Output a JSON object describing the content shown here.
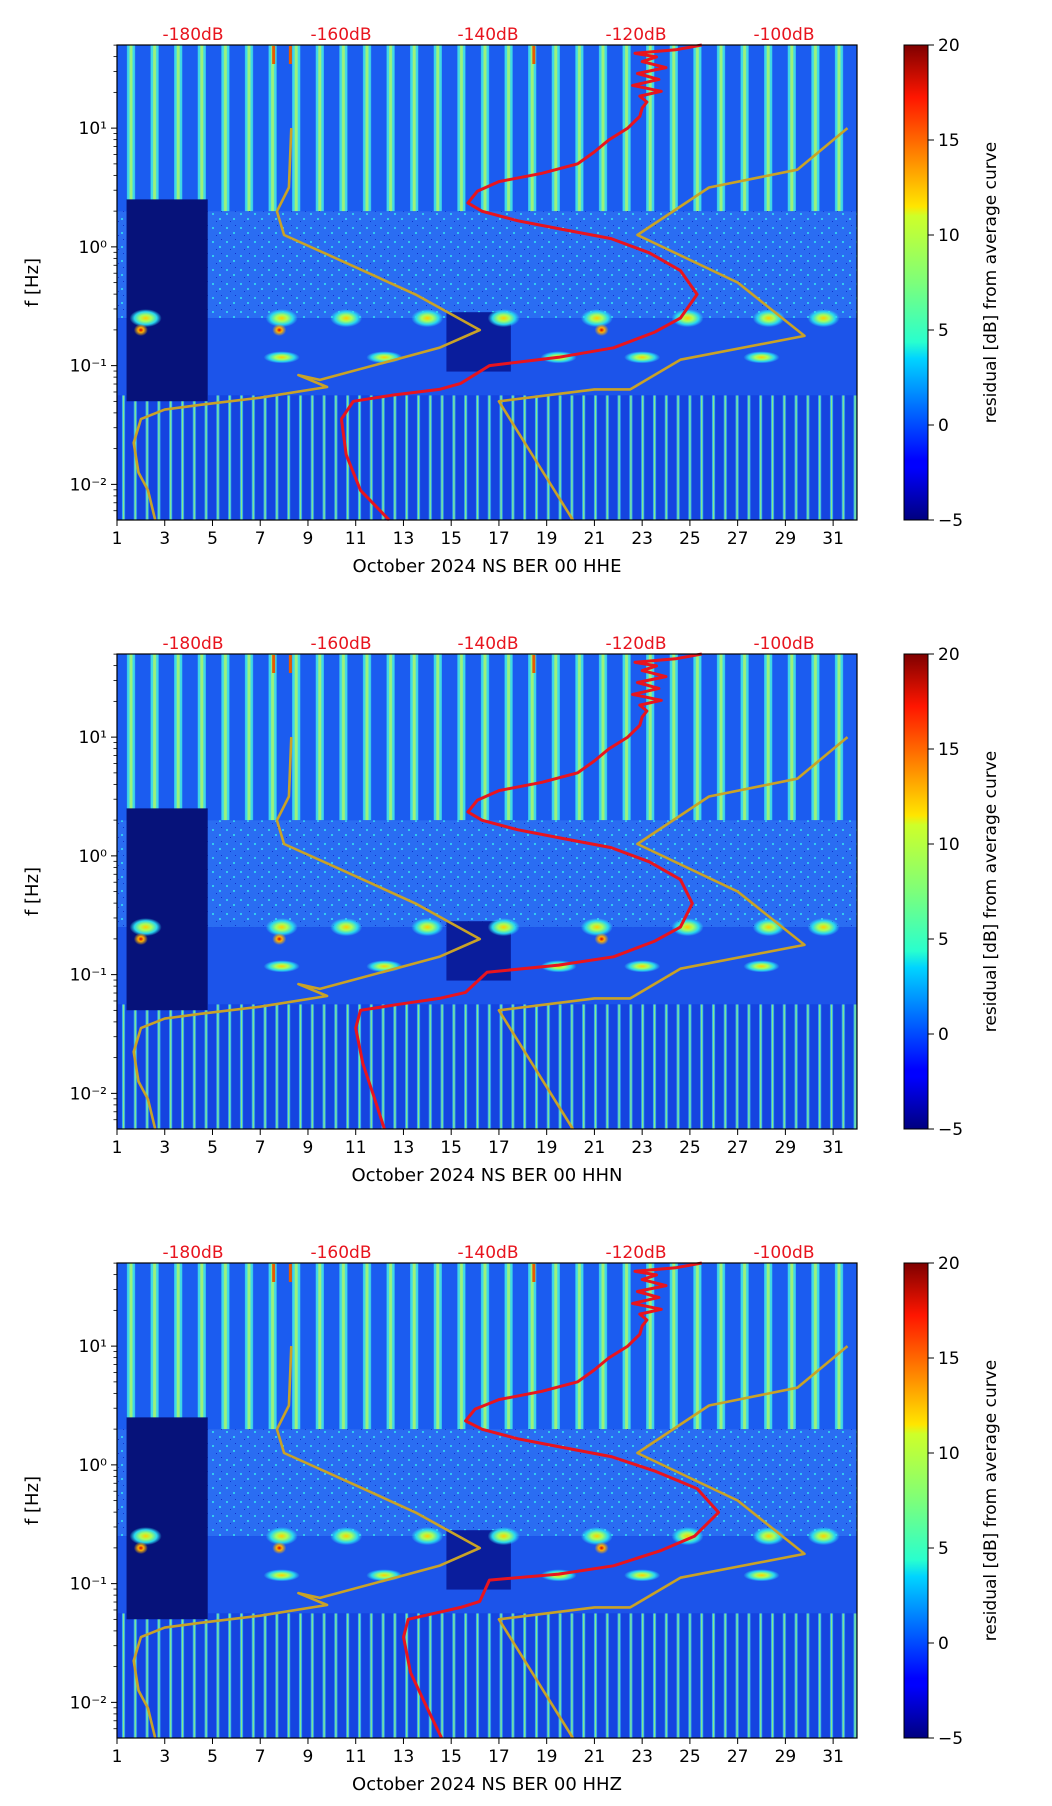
{
  "chart_data": [
    {
      "type": "heatmap",
      "xlabel": "October 2024 NS BER 00 HHE",
      "ylabel": "f [Hz]",
      "x_ticks": [
        "1",
        "3",
        "5",
        "7",
        "9",
        "11",
        "13",
        "15",
        "17",
        "19",
        "21",
        "23",
        "25",
        "27",
        "29",
        "31"
      ],
      "y_ticks": [
        "10⁻²",
        "10⁻¹",
        "10⁰",
        "10¹"
      ],
      "xlim": [
        1,
        32
      ],
      "ylim_log10": [
        -2.3,
        1.7
      ],
      "top_axis_labels": [
        "-180dB",
        "-160dB",
        "-140dB",
        "-120dB",
        "-100dB"
      ],
      "colorbar": {
        "label": "residual [dB] from average curve",
        "range": [
          -5,
          20
        ],
        "ticks": [
          "20",
          "15",
          "10",
          "5",
          "0",
          "−5"
        ]
      },
      "series": [
        {
          "name": "red (mean PSD)",
          "color": "#e8141e",
          "x": [
            12.4,
            11.2,
            10.6,
            10.4,
            10.9,
            12.5,
            14.5,
            15.4,
            16.6,
            19.5,
            21.8,
            23.5,
            24.6,
            25.3,
            24.6,
            23.3,
            21.7,
            19.6,
            17.8,
            16.3,
            15.7,
            16.1,
            17.0,
            18.8,
            20.3,
            21.0,
            21.6,
            22.4,
            22.9,
            23.0,
            23.2,
            22.9,
            23.8,
            22.6,
            23.7,
            22.8,
            24.0,
            23.0,
            23.6,
            22.7,
            24.4,
            25.5
          ],
          "y_log10": [
            -2.3,
            -2.05,
            -1.75,
            -1.45,
            -1.3,
            -1.25,
            -1.2,
            -1.15,
            -1.0,
            -0.93,
            -0.85,
            -0.72,
            -0.6,
            -0.4,
            -0.2,
            -0.05,
            0.07,
            0.15,
            0.22,
            0.3,
            0.37,
            0.47,
            0.55,
            0.62,
            0.7,
            0.8,
            0.9,
            1.0,
            1.1,
            1.17,
            1.22,
            1.27,
            1.31,
            1.36,
            1.41,
            1.46,
            1.51,
            1.56,
            1.6,
            1.63,
            1.66,
            1.7
          ]
        },
        {
          "name": "gold (noise model)",
          "color": "#c9a227",
          "x": [
            2.6,
            2.3,
            1.9,
            1.7,
            2.0,
            3.0,
            4.5,
            7.0,
            9.8,
            8.6,
            9.5,
            14.5,
            16.2,
            13.5,
            10.0,
            8.0,
            7.7,
            8.2,
            8.3
          ],
          "y_log10": [
            -2.3,
            -2.05,
            -1.9,
            -1.65,
            -1.45,
            -1.37,
            -1.33,
            -1.27,
            -1.18,
            -1.08,
            -1.12,
            -0.85,
            -0.7,
            -0.4,
            -0.08,
            0.1,
            0.3,
            0.5,
            1.0
          ]
        },
        {
          "name": "gold (noise model)",
          "color": "#c9a227",
          "x": [
            20.1,
            17.0,
            21.0,
            22.5,
            24.6,
            29.8,
            27.0,
            22.8,
            25.8,
            29.5,
            31.6
          ],
          "y_log10": [
            -2.3,
            -1.3,
            -1.2,
            -1.2,
            -0.95,
            -0.75,
            -0.3,
            0.1,
            0.5,
            0.65,
            1.0
          ]
        }
      ]
    },
    {
      "type": "heatmap",
      "xlabel": "October 2024 NS BER 00 HHN",
      "ylabel": "f [Hz]",
      "x_ticks": [
        "1",
        "3",
        "5",
        "7",
        "9",
        "11",
        "13",
        "15",
        "17",
        "19",
        "21",
        "23",
        "25",
        "27",
        "29",
        "31"
      ],
      "y_ticks": [
        "10⁻²",
        "10⁻¹",
        "10⁰",
        "10¹"
      ],
      "xlim": [
        1,
        32
      ],
      "ylim_log10": [
        -2.3,
        1.7
      ],
      "top_axis_labels": [
        "-180dB",
        "-160dB",
        "-140dB",
        "-120dB",
        "-100dB"
      ],
      "colorbar": {
        "label": "residual [dB] from average curve",
        "range": [
          -5,
          20
        ],
        "ticks": [
          "20",
          "15",
          "10",
          "5",
          "0",
          "−5"
        ]
      },
      "series": [
        {
          "name": "red (mean PSD)",
          "color": "#e8141e",
          "x": [
            12.2,
            11.8,
            11.3,
            11.0,
            11.2,
            12.8,
            14.5,
            15.6,
            16.5,
            19.5,
            21.8,
            23.5,
            24.6,
            25.1,
            24.6,
            23.3,
            21.7,
            19.6,
            17.8,
            16.3,
            15.7,
            16.1,
            17.0,
            18.8,
            20.3,
            21.0,
            21.6,
            22.4,
            22.9,
            23.0,
            23.2,
            22.9,
            23.8,
            22.6,
            23.7,
            22.8,
            24.0,
            23.0,
            23.6,
            22.7,
            24.4,
            25.5
          ],
          "y_log10": [
            -2.3,
            -2.05,
            -1.75,
            -1.45,
            -1.3,
            -1.25,
            -1.2,
            -1.15,
            -0.98,
            -0.92,
            -0.85,
            -0.72,
            -0.6,
            -0.4,
            -0.2,
            -0.05,
            0.07,
            0.15,
            0.22,
            0.3,
            0.37,
            0.47,
            0.55,
            0.62,
            0.7,
            0.8,
            0.9,
            1.0,
            1.1,
            1.17,
            1.22,
            1.27,
            1.31,
            1.36,
            1.41,
            1.46,
            1.51,
            1.56,
            1.6,
            1.63,
            1.66,
            1.7
          ]
        },
        {
          "name": "gold (noise model)",
          "color": "#c9a227",
          "x": [
            2.6,
            2.3,
            1.9,
            1.7,
            2.0,
            3.0,
            4.5,
            7.0,
            9.8,
            8.6,
            9.5,
            14.5,
            16.2,
            13.5,
            10.0,
            8.0,
            7.7,
            8.2,
            8.3
          ],
          "y_log10": [
            -2.3,
            -2.05,
            -1.9,
            -1.65,
            -1.45,
            -1.37,
            -1.33,
            -1.27,
            -1.18,
            -1.08,
            -1.12,
            -0.85,
            -0.7,
            -0.4,
            -0.08,
            0.1,
            0.3,
            0.5,
            1.0
          ]
        },
        {
          "name": "gold (noise model)",
          "color": "#c9a227",
          "x": [
            20.1,
            17.0,
            21.0,
            22.5,
            24.6,
            29.8,
            27.0,
            22.8,
            25.8,
            29.5,
            31.6
          ],
          "y_log10": [
            -2.3,
            -1.3,
            -1.2,
            -1.2,
            -0.95,
            -0.75,
            -0.3,
            0.1,
            0.5,
            0.65,
            1.0
          ]
        }
      ]
    },
    {
      "type": "heatmap",
      "xlabel": "October 2024 NS BER 00 HHZ",
      "ylabel": "f [Hz]",
      "x_ticks": [
        "1",
        "3",
        "5",
        "7",
        "9",
        "11",
        "13",
        "15",
        "17",
        "19",
        "21",
        "23",
        "25",
        "27",
        "29",
        "31"
      ],
      "y_ticks": [
        "10⁻²",
        "10⁻¹",
        "10⁰",
        "10¹"
      ],
      "xlim": [
        1,
        32
      ],
      "ylim_log10": [
        -2.3,
        1.7
      ],
      "top_axis_labels": [
        "-180dB",
        "-160dB",
        "-140dB",
        "-120dB",
        "-100dB"
      ],
      "colorbar": {
        "label": "residual [dB] from average curve",
        "range": [
          -5,
          20
        ],
        "ticks": [
          "20",
          "15",
          "10",
          "5",
          "0",
          "−5"
        ]
      },
      "series": [
        {
          "name": "red (mean PSD)",
          "color": "#e8141e",
          "x": [
            14.6,
            14.0,
            13.3,
            13.0,
            13.2,
            14.3,
            15.4,
            16.2,
            16.6,
            19.5,
            21.8,
            23.8,
            25.2,
            26.2,
            25.3,
            23.5,
            21.7,
            19.6,
            17.8,
            16.3,
            15.6,
            16.0,
            17.0,
            18.8,
            20.3,
            21.0,
            21.6,
            22.4,
            22.9,
            23.0,
            23.2,
            22.9,
            23.8,
            22.6,
            23.7,
            22.8,
            24.0,
            23.0,
            23.6,
            22.7,
            24.4,
            25.5
          ],
          "y_log10": [
            -2.3,
            -2.05,
            -1.75,
            -1.45,
            -1.3,
            -1.25,
            -1.2,
            -1.15,
            -0.97,
            -0.92,
            -0.85,
            -0.72,
            -0.6,
            -0.4,
            -0.2,
            -0.05,
            0.07,
            0.15,
            0.22,
            0.3,
            0.37,
            0.47,
            0.55,
            0.62,
            0.7,
            0.8,
            0.9,
            1.0,
            1.1,
            1.17,
            1.22,
            1.27,
            1.31,
            1.36,
            1.41,
            1.46,
            1.51,
            1.56,
            1.6,
            1.63,
            1.66,
            1.7
          ]
        },
        {
          "name": "gold (noise model)",
          "color": "#c9a227",
          "x": [
            2.6,
            2.3,
            1.9,
            1.7,
            2.0,
            3.0,
            4.5,
            7.0,
            9.8,
            8.6,
            9.5,
            14.5,
            16.2,
            13.5,
            10.0,
            8.0,
            7.7,
            8.2,
            8.3
          ],
          "y_log10": [
            -2.3,
            -2.05,
            -1.9,
            -1.65,
            -1.45,
            -1.37,
            -1.33,
            -1.27,
            -1.18,
            -1.08,
            -1.12,
            -0.85,
            -0.7,
            -0.4,
            -0.08,
            0.1,
            0.3,
            0.5,
            1.0
          ]
        },
        {
          "name": "gold (noise model)",
          "color": "#c9a227",
          "x": [
            20.1,
            17.0,
            21.0,
            22.5,
            24.6,
            29.8,
            27.0,
            22.8,
            25.8,
            29.5,
            31.6
          ],
          "y_log10": [
            -2.3,
            -1.3,
            -1.2,
            -1.2,
            -0.95,
            -0.75,
            -0.3,
            0.1,
            0.5,
            0.65,
            1.0
          ]
        }
      ]
    }
  ]
}
